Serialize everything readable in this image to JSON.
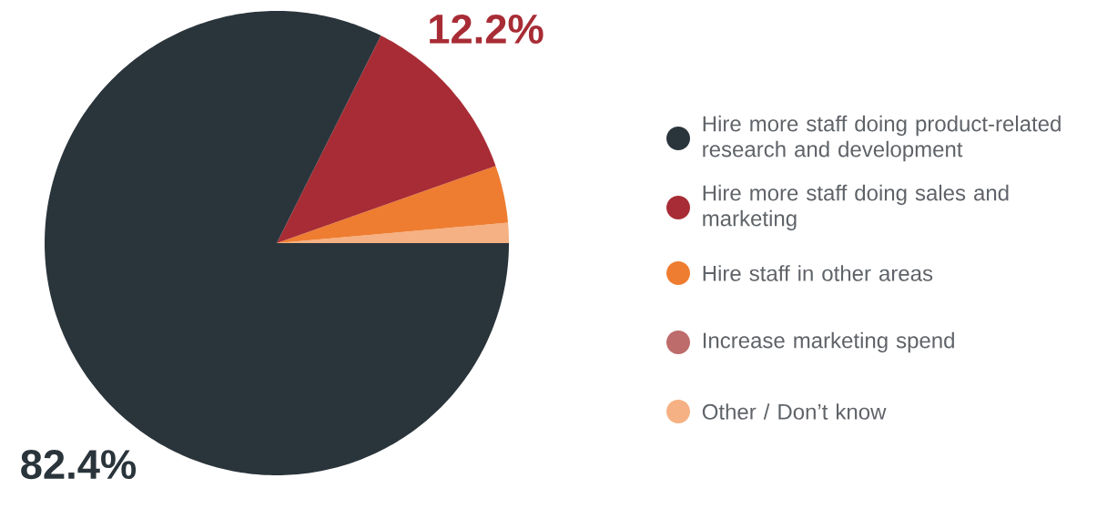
{
  "chart_data": {
    "type": "pie",
    "categories": [
      "Hire more staff doing product-related research and development",
      "Hire more staff doing sales and marketing",
      "Hire staff in other areas",
      "Increase marketing spend",
      "Other / Don’t know"
    ],
    "values": [
      82.4,
      12.2,
      4.0,
      0,
      1.4
    ],
    "colors": [
      "#2a343b",
      "#a82c35",
      "#ee7d31",
      "#bd6b6b",
      "#f5b183"
    ],
    "value_labels": [
      "82.4%",
      "12.2%",
      null,
      null,
      null
    ],
    "legend": "right"
  }
}
